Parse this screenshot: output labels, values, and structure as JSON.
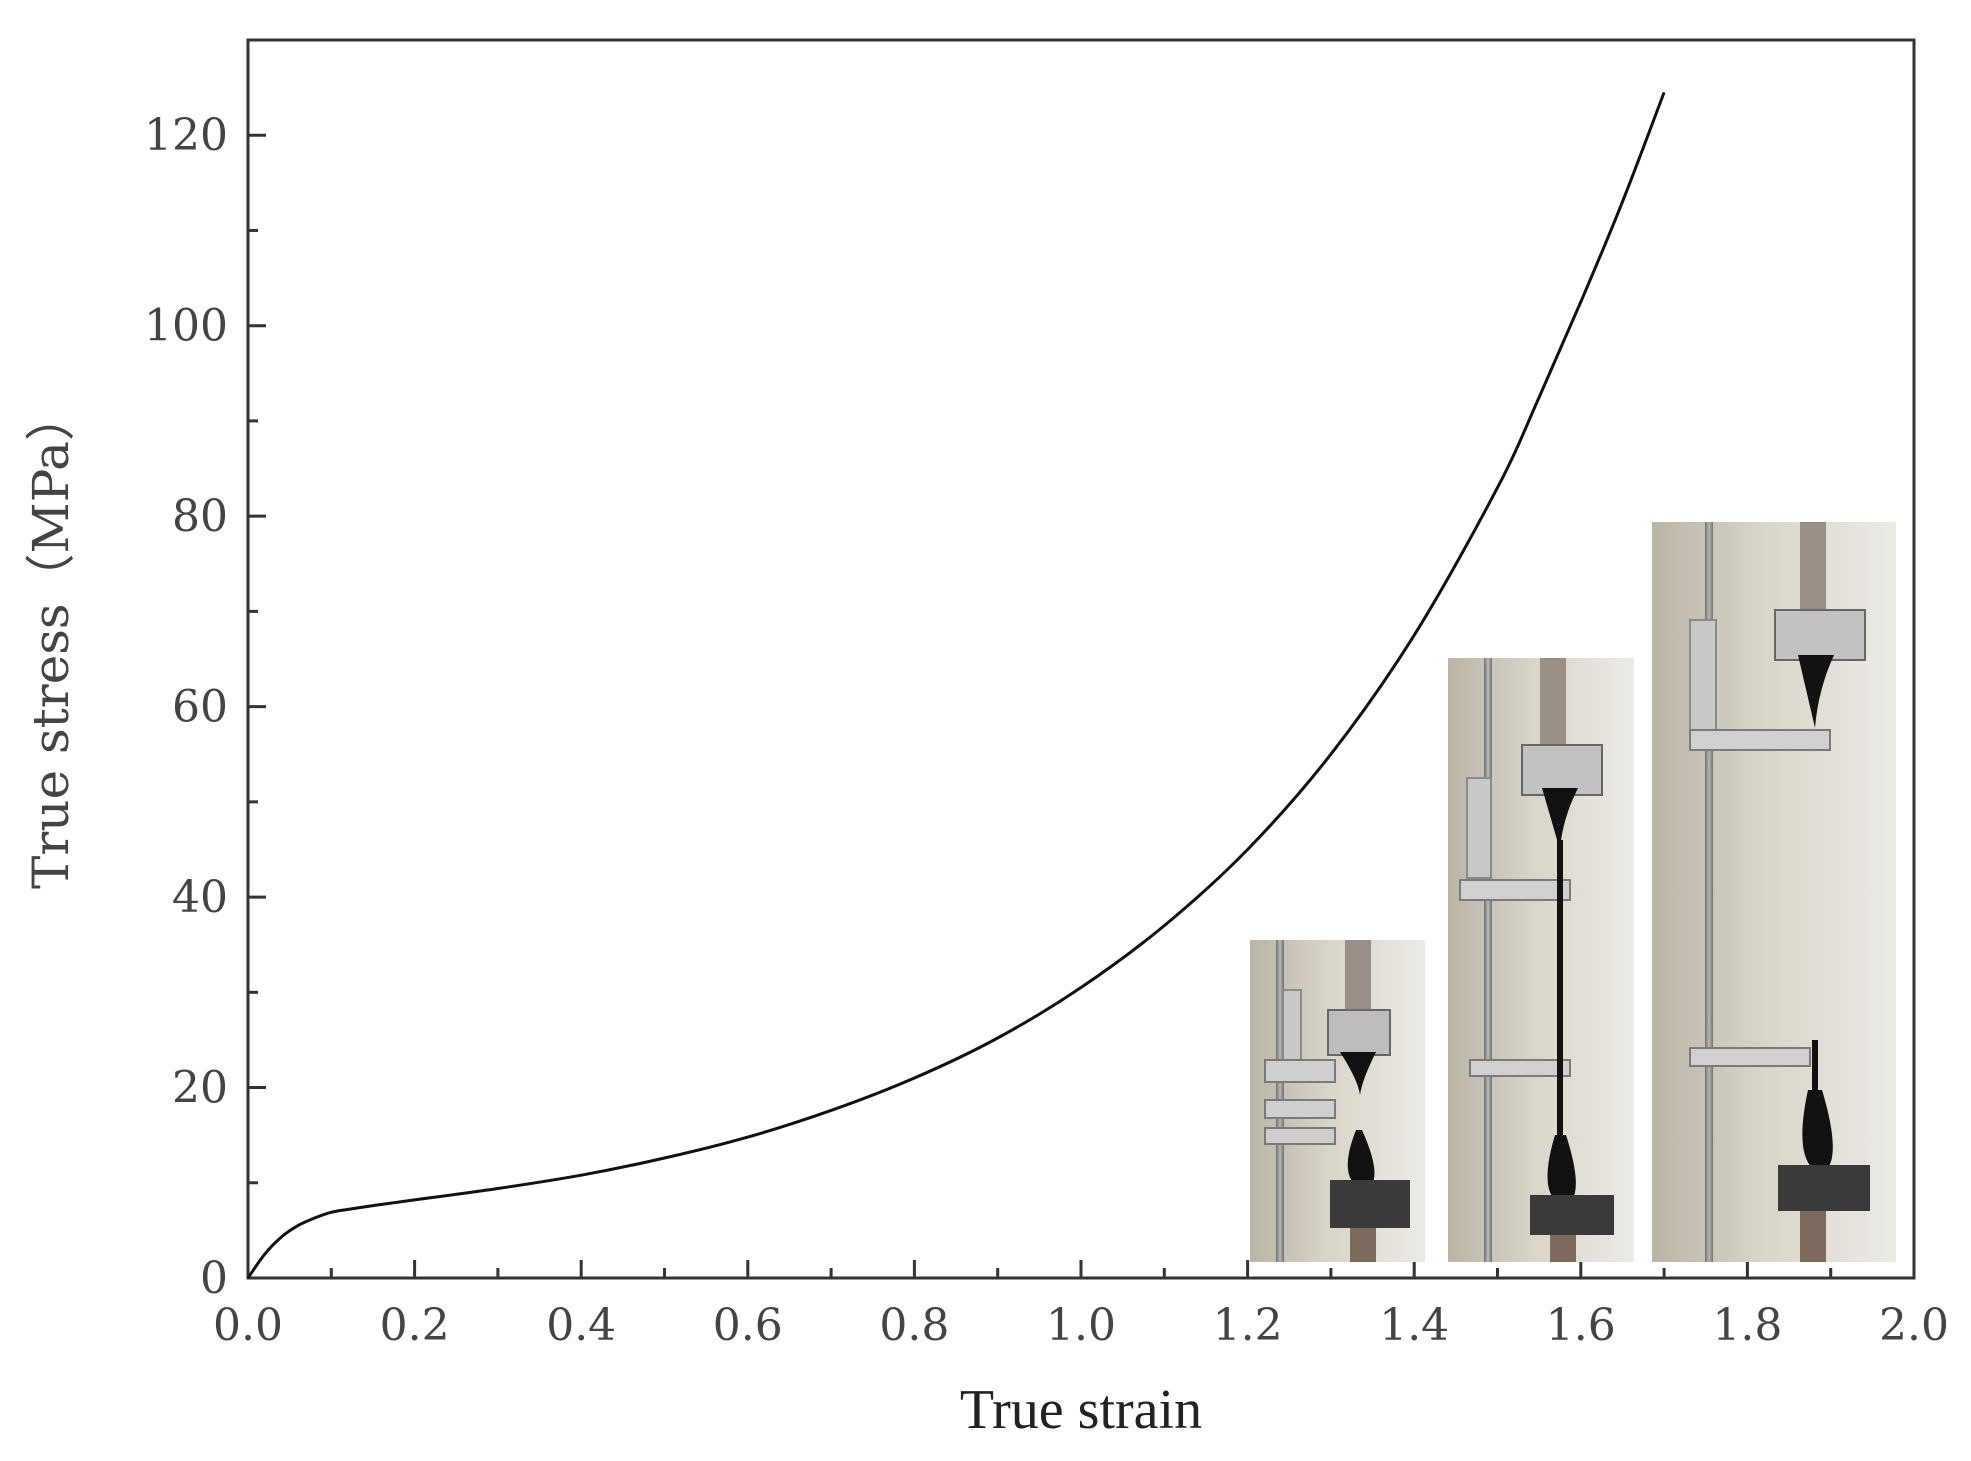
{
  "chart_data": {
    "type": "line",
    "xlabel": "True strain",
    "ylabel": "True stress（MPa）",
    "xlim": [
      0.0,
      2.0
    ],
    "ylim": [
      0,
      130
    ],
    "x_ticks": [
      "0.0",
      "0.2",
      "0.4",
      "0.6",
      "0.8",
      "1.0",
      "1.2",
      "1.4",
      "1.6",
      "1.8",
      "2.0"
    ],
    "y_ticks": [
      "0",
      "20",
      "40",
      "60",
      "80",
      "100",
      "120"
    ],
    "grid": false,
    "series": [
      {
        "x": [
          0.0,
          0.02,
          0.04,
          0.06,
          0.08,
          0.1,
          0.12,
          0.15,
          0.2,
          0.3,
          0.4,
          0.5,
          0.6,
          0.7,
          0.8,
          0.9,
          1.0,
          1.1,
          1.2,
          1.3,
          1.4,
          1.5,
          1.55,
          1.6,
          1.65,
          1.7
        ],
        "y": [
          0,
          2.5,
          4.3,
          5.5,
          6.3,
          6.9,
          7.2,
          7.6,
          8.2,
          9.4,
          10.8,
          12.6,
          14.8,
          17.6,
          21.0,
          25.2,
          30.5,
          37.0,
          45.0,
          55.0,
          67.5,
          83.0,
          92.5,
          102.5,
          113.0,
          124.5
        ],
        "color": "#111111"
      }
    ],
    "insets": [
      {
        "description_icon": "tensile-test-photo-early"
      },
      {
        "description_icon": "tensile-test-photo-middle"
      },
      {
        "description_icon": "tensile-test-photo-late"
      }
    ]
  }
}
